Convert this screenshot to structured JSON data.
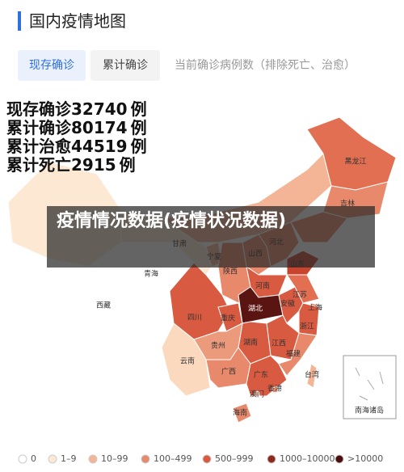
{
  "header": {
    "title": "国内疫情地图"
  },
  "tabs": [
    "现存确诊",
    "累计确诊",
    "当前确诊病例数（排除死亡、治愈）"
  ],
  "stats": [
    {
      "label": "现存确诊",
      "value": 32740,
      "unit": "例"
    },
    {
      "label": "累计确诊",
      "value": 80174,
      "unit": "例"
    },
    {
      "label": "累计治愈",
      "value": 44519,
      "unit": "例"
    },
    {
      "label": "累计死亡",
      "value": 2915,
      "unit": "例"
    }
  ],
  "overlay": "疫情情况数据(疫情状况数据)",
  "provinces": [
    {
      "name": "黑龙江",
      "color": "#e26f52"
    },
    {
      "name": "吉林",
      "color": "#e8896b"
    },
    {
      "name": "河北",
      "color": "#e8896b"
    },
    {
      "name": "山西",
      "color": "#e8896b"
    },
    {
      "name": "山东",
      "color": "#c9442f"
    },
    {
      "name": "宁夏",
      "color": "#f3b596"
    },
    {
      "name": "甘肃",
      "color": "#fde8d4"
    },
    {
      "name": "青海",
      "color": "#ffffff"
    },
    {
      "name": "陕西",
      "color": "#e8896b"
    },
    {
      "name": "河南",
      "color": "#d85a40"
    },
    {
      "name": "西藏",
      "color": "#ffffff"
    },
    {
      "name": "四川",
      "color": "#d85a40"
    },
    {
      "name": "重庆",
      "color": "#d85a40"
    },
    {
      "name": "湖北",
      "color": "#5a1512"
    },
    {
      "name": "江苏",
      "color": "#e26f52"
    },
    {
      "name": "安徽",
      "color": "#d85a40"
    },
    {
      "name": "上海",
      "color": "#e26f52"
    },
    {
      "name": "浙江",
      "color": "#d85a40"
    },
    {
      "name": "江西",
      "color": "#d85a40"
    },
    {
      "name": "湖南",
      "color": "#d85a40"
    },
    {
      "name": "贵州",
      "color": "#ec9a7c"
    },
    {
      "name": "福建",
      "color": "#e8896b"
    },
    {
      "name": "云南",
      "color": "#fbd9bf"
    },
    {
      "name": "广西",
      "color": "#e8896b"
    },
    {
      "name": "广东",
      "color": "#d85a40"
    },
    {
      "name": "台湾",
      "color": "#f3b596"
    },
    {
      "name": "香港",
      "color": "#e8896b"
    },
    {
      "name": "澳门",
      "color": "#f3b596"
    },
    {
      "name": "海南",
      "color": "#e8896b"
    }
  ],
  "inset": "南海诸岛",
  "legend": [
    {
      "label": "0",
      "color": "#ffffff"
    },
    {
      "label": "1–9",
      "color": "#fde8d4"
    },
    {
      "label": "10–99",
      "color": "#f3b596"
    },
    {
      "label": "100–499",
      "color": "#e8896b"
    },
    {
      "label": "500–999",
      "color": "#d85a40"
    },
    {
      "label": "1000–10000",
      "color": "#8c2a1d"
    },
    {
      "label": ">10000",
      "color": "#4a1010"
    }
  ]
}
